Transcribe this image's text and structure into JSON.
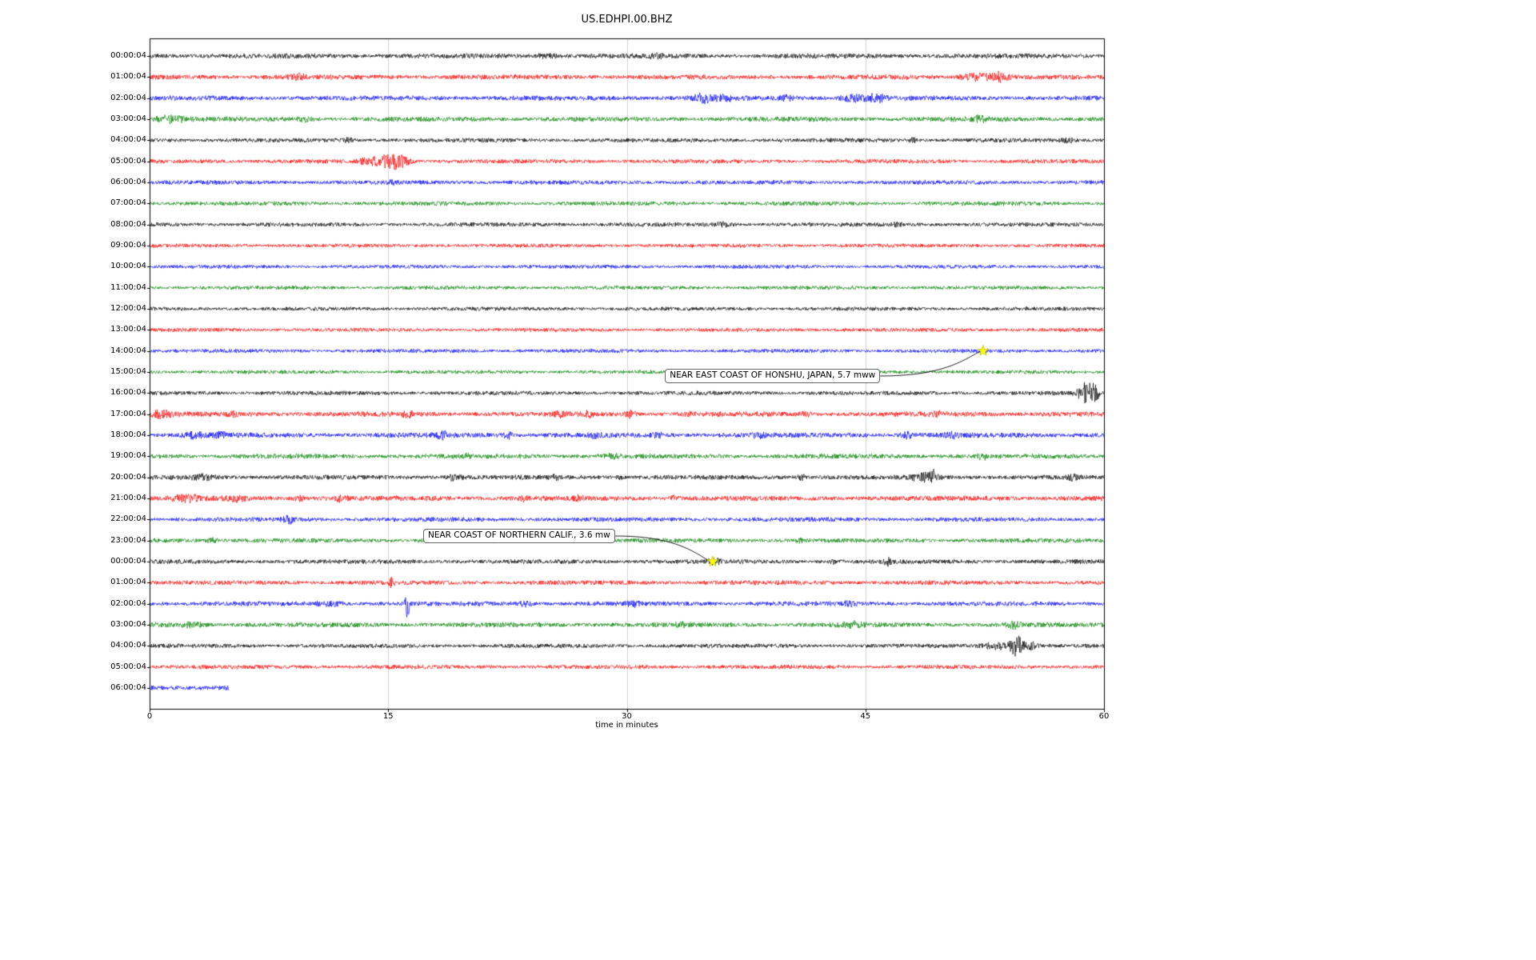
{
  "chart_data": {
    "type": "line",
    "title": "US.EDHPI.00.BHZ",
    "xlabel": "time in minutes",
    "xlim": [
      0,
      60
    ],
    "x_ticks": [
      0,
      15,
      30,
      45,
      60
    ],
    "grid_minutes": [
      15,
      30,
      45
    ],
    "grid_on": true,
    "trace_colors": {
      "black": "#000000",
      "red": "#ff0000",
      "blue": "#0000ff",
      "green": "#008000"
    },
    "rows": [
      {
        "label": "00:00:04",
        "color": "black",
        "noise": 1.1,
        "bursts": [
          [
            25,
            0.6,
            2.5
          ],
          [
            31.8,
            0.4,
            2
          ]
        ]
      },
      {
        "label": "01:00:04",
        "color": "red",
        "noise": 1.1,
        "bursts": [
          [
            9.3,
            0.5,
            2.5
          ],
          [
            51.8,
            0.8,
            4
          ],
          [
            53.3,
            0.6,
            5
          ]
        ]
      },
      {
        "label": "02:00:04",
        "color": "blue",
        "noise": 1.1,
        "bursts": [
          [
            34.8,
            0.7,
            4.5
          ],
          [
            36.3,
            0.5,
            3
          ],
          [
            40,
            0.4,
            2.5
          ],
          [
            44.3,
            0.8,
            4
          ],
          [
            45.7,
            0.5,
            4.5
          ]
        ]
      },
      {
        "label": "03:00:04",
        "color": "green",
        "noise": 1.1,
        "bursts": [
          [
            1.3,
            0.9,
            4
          ],
          [
            9.7,
            0.4,
            2.5
          ],
          [
            52.2,
            0.4,
            3
          ]
        ]
      },
      {
        "label": "04:00:04",
        "color": "black",
        "noise": 0.95,
        "bursts": [
          [
            12.5,
            0.3,
            2
          ],
          [
            48,
            0.25,
            3
          ],
          [
            57.8,
            0.3,
            2.5
          ]
        ]
      },
      {
        "label": "05:00:04",
        "color": "red",
        "noise": 0.95,
        "bursts": [
          [
            13.9,
            0.6,
            4
          ],
          [
            15.2,
            0.7,
            9
          ],
          [
            16,
            0.4,
            4
          ]
        ]
      },
      {
        "label": "06:00:04",
        "color": "blue",
        "noise": 0.95,
        "bursts": [
          [
            15.3,
            0.3,
            2
          ]
        ]
      },
      {
        "label": "07:00:04",
        "color": "green",
        "noise": 0.95,
        "bursts": []
      },
      {
        "label": "08:00:04",
        "color": "black",
        "noise": 0.95,
        "bursts": [
          [
            36,
            0.4,
            2
          ],
          [
            47,
            0.3,
            1.8
          ]
        ]
      },
      {
        "label": "09:00:04",
        "color": "red",
        "noise": 0.85,
        "bursts": []
      },
      {
        "label": "10:00:04",
        "color": "blue",
        "noise": 0.85,
        "bursts": []
      },
      {
        "label": "11:00:04",
        "color": "green",
        "noise": 0.85,
        "bursts": []
      },
      {
        "label": "12:00:04",
        "color": "black",
        "noise": 0.85,
        "bursts": []
      },
      {
        "label": "13:00:04",
        "color": "red",
        "noise": 0.85,
        "bursts": []
      },
      {
        "label": "14:00:04",
        "color": "blue",
        "noise": 0.85,
        "bursts": [
          [
            52.3,
            0.3,
            2
          ]
        ]
      },
      {
        "label": "15:00:04",
        "color": "green",
        "noise": 0.85,
        "bursts": []
      },
      {
        "label": "16:00:04",
        "color": "black",
        "noise": 0.95,
        "bursts": [
          [
            58.9,
            0.5,
            13
          ],
          [
            59.5,
            0.3,
            6
          ]
        ]
      },
      {
        "label": "17:00:04",
        "color": "red",
        "noise": 1.15,
        "bursts": [
          [
            0.6,
            0.8,
            3.5
          ],
          [
            5.2,
            0.3,
            3
          ],
          [
            16.2,
            0.3,
            4.5
          ],
          [
            25.8,
            0.3,
            2.5
          ],
          [
            27.6,
            0.3,
            2.5
          ],
          [
            30.2,
            0.3,
            4.5
          ],
          [
            34,
            0.3,
            2
          ],
          [
            41.3,
            0.3,
            2.5
          ],
          [
            49.6,
            0.25,
            2.5
          ]
        ]
      },
      {
        "label": "18:00:04",
        "color": "blue",
        "noise": 1.15,
        "bursts": [
          [
            2.8,
            0.6,
            3
          ],
          [
            4.4,
            0.4,
            3
          ],
          [
            18.4,
            0.35,
            4
          ],
          [
            22.5,
            0.35,
            3.5
          ],
          [
            27.9,
            0.4,
            2.5
          ],
          [
            32,
            0.3,
            2.5
          ],
          [
            38.3,
            0.4,
            2.5
          ],
          [
            47.6,
            0.35,
            3
          ],
          [
            50.4,
            0.35,
            2.5
          ]
        ]
      },
      {
        "label": "19:00:04",
        "color": "green",
        "noise": 1.05,
        "bursts": [
          [
            20,
            0.3,
            2
          ],
          [
            29,
            0.4,
            2.5
          ],
          [
            52.3,
            0.35,
            3.5
          ]
        ]
      },
      {
        "label": "20:00:04",
        "color": "black",
        "noise": 1.05,
        "bursts": [
          [
            3.4,
            0.7,
            2.5
          ],
          [
            19.2,
            0.5,
            3.5
          ],
          [
            25.5,
            0.3,
            2
          ],
          [
            29.6,
            0.25,
            2.5
          ],
          [
            41,
            0.4,
            2.5
          ],
          [
            48.7,
            0.8,
            4
          ],
          [
            49.3,
            0.2,
            6
          ],
          [
            58,
            0.3,
            2.5
          ]
        ]
      },
      {
        "label": "21:00:04",
        "color": "red",
        "noise": 1.15,
        "bursts": [
          [
            2.3,
            0.9,
            3
          ],
          [
            5.4,
            0.6,
            2.5
          ],
          [
            9.5,
            0.4,
            2.5
          ],
          [
            12,
            0.4,
            2.5
          ],
          [
            23.5,
            0.3,
            2
          ],
          [
            27,
            0.3,
            2.5
          ],
          [
            33,
            0.3,
            2.5
          ]
        ]
      },
      {
        "label": "22:00:04",
        "color": "blue",
        "noise": 1.0,
        "bursts": [
          [
            8.8,
            0.4,
            3.5
          ]
        ]
      },
      {
        "label": "23:00:04",
        "color": "green",
        "noise": 1.0,
        "bursts": [
          [
            4,
            0.4,
            2.5
          ],
          [
            41,
            0.3,
            1.8
          ]
        ]
      },
      {
        "label": "00:00:04",
        "color": "black",
        "noise": 1.0,
        "bursts": [
          [
            35.5,
            0.4,
            2.5
          ],
          [
            43,
            0.3,
            2
          ],
          [
            46.4,
            0.2,
            3.5
          ]
        ]
      },
      {
        "label": "01:00:04",
        "color": "red",
        "noise": 1.0,
        "bursts": [
          [
            15.2,
            0.2,
            4.5
          ]
        ]
      },
      {
        "label": "02:00:04",
        "color": "blue",
        "noise": 1.05,
        "bursts": [
          [
            11.3,
            0.8,
            2.2
          ],
          [
            16.2,
            0.12,
            20
          ],
          [
            23.6,
            0.5,
            2.2
          ],
          [
            30.4,
            0.35,
            2.2
          ],
          [
            44,
            0.4,
            2
          ]
        ]
      },
      {
        "label": "03:00:04",
        "color": "green",
        "noise": 1.1,
        "bursts": [
          [
            2.7,
            0.7,
            2.5
          ],
          [
            33.5,
            0.4,
            2
          ],
          [
            44.2,
            0.7,
            2.5
          ],
          [
            54.4,
            0.4,
            3.5
          ]
        ]
      },
      {
        "label": "04:00:04",
        "color": "black",
        "noise": 0.95,
        "bursts": [
          [
            53.2,
            0.8,
            4
          ],
          [
            54.5,
            0.4,
            12
          ],
          [
            55.4,
            0.4,
            4
          ]
        ]
      },
      {
        "label": "05:00:04",
        "color": "red",
        "noise": 0.95,
        "bursts": []
      },
      {
        "label": "06:00:04",
        "color": "blue",
        "noise": 1.2,
        "bursts": [],
        "end": 5
      }
    ],
    "events": [
      {
        "label": "NEAR EAST COAST OF HONSHU, JAPAN, 5.7 mww",
        "row": 14,
        "t": 52.4,
        "box_t": 32.4,
        "box_row": 15.2,
        "marker": "yellow-star"
      },
      {
        "label": "NEAR COAST OF NORTHERN CALIF., 3.6 mw",
        "row": 24,
        "t": 35.4,
        "box_t": 17.2,
        "box_row": 22.8,
        "marker": "yellow-star"
      }
    ]
  }
}
